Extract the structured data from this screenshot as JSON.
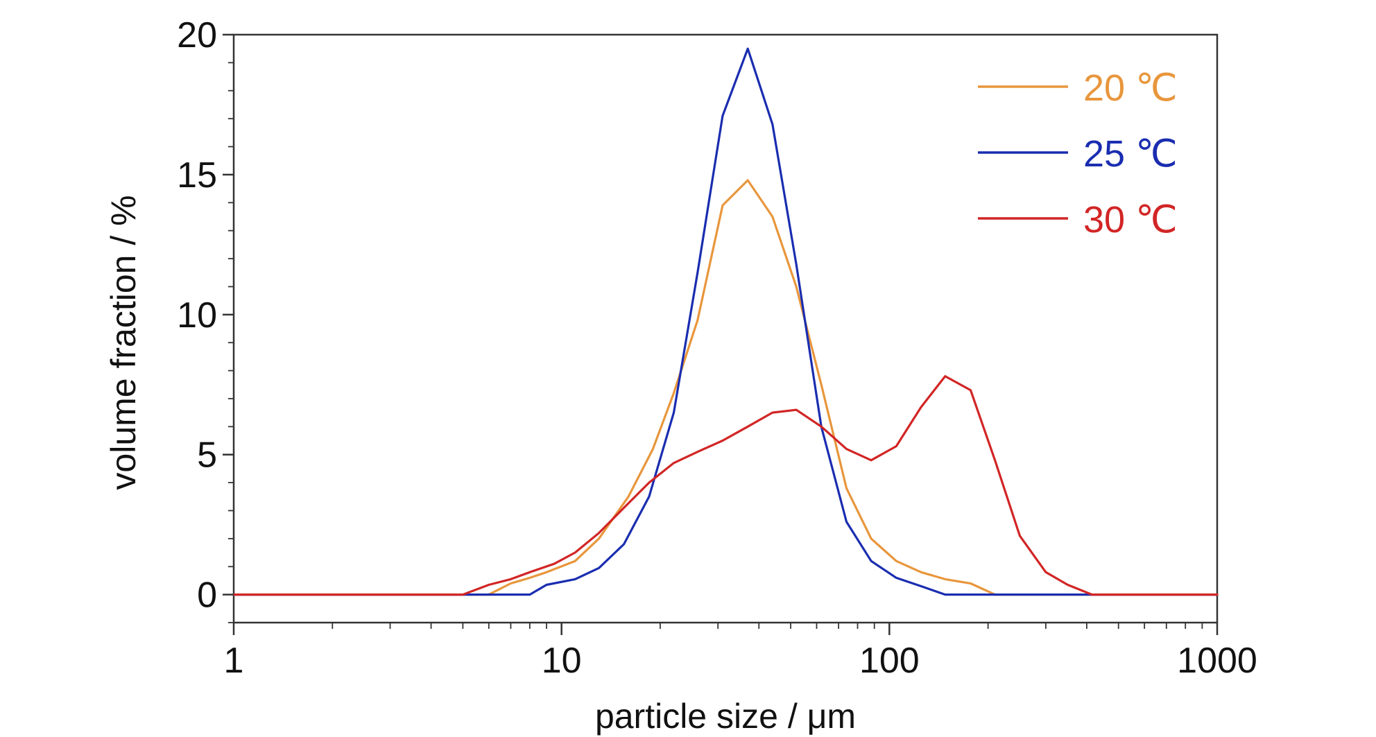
{
  "chart_data": {
    "type": "line",
    "title": "",
    "xlabel": "particle size / μm",
    "ylabel": "volume fraction / %",
    "xscale": "log",
    "xlim": [
      1,
      1000
    ],
    "ylim": [
      -1,
      20
    ],
    "x_ticks": [
      1,
      10,
      100,
      1000
    ],
    "x_tick_labels": [
      "1",
      "10",
      "100",
      "1000"
    ],
    "y_ticks": [
      0,
      5,
      10,
      15,
      20
    ],
    "y_tick_labels": [
      "0",
      "5",
      "10",
      "15",
      "20"
    ],
    "grid": false,
    "legend_position": "top-right",
    "series": [
      {
        "name": "20 ℃",
        "color": "#E8963C",
        "points": [
          [
            1,
            0
          ],
          [
            6,
            0
          ],
          [
            7,
            0.4
          ],
          [
            8,
            0.6
          ],
          [
            9,
            0.8
          ],
          [
            11,
            1.2
          ],
          [
            13,
            2.0
          ],
          [
            16,
            3.5
          ],
          [
            19,
            5.2
          ],
          [
            22,
            7.2
          ],
          [
            26,
            9.8
          ],
          [
            31,
            13.9
          ],
          [
            37,
            14.8
          ],
          [
            44,
            13.5
          ],
          [
            52,
            11.0
          ],
          [
            62,
            7.5
          ],
          [
            74,
            3.8
          ],
          [
            88,
            2.0
          ],
          [
            105,
            1.2
          ],
          [
            125,
            0.8
          ],
          [
            148,
            0.55
          ],
          [
            177,
            0.4
          ],
          [
            210,
            0
          ],
          [
            1000,
            0
          ]
        ]
      },
      {
        "name": "25 ℃",
        "color": "#1A2DB0",
        "points": [
          [
            1,
            0
          ],
          [
            5,
            0
          ],
          [
            8,
            0
          ],
          [
            9,
            0.35
          ],
          [
            11,
            0.55
          ],
          [
            13,
            0.95
          ],
          [
            15.5,
            1.8
          ],
          [
            18.5,
            3.5
          ],
          [
            22,
            6.5
          ],
          [
            26,
            11.5
          ],
          [
            31,
            17.1
          ],
          [
            37,
            19.5
          ],
          [
            44,
            16.8
          ],
          [
            52,
            11.8
          ],
          [
            62,
            6.0
          ],
          [
            74,
            2.6
          ],
          [
            88,
            1.2
          ],
          [
            105,
            0.6
          ],
          [
            125,
            0.3
          ],
          [
            148,
            0
          ],
          [
            1000,
            0
          ]
        ]
      },
      {
        "name": "30 ℃",
        "color": "#D22525",
        "points": [
          [
            1,
            0
          ],
          [
            5,
            0
          ],
          [
            6,
            0.35
          ],
          [
            7,
            0.55
          ],
          [
            8,
            0.8
          ],
          [
            9.5,
            1.1
          ],
          [
            11,
            1.5
          ],
          [
            13,
            2.2
          ],
          [
            15.5,
            3.1
          ],
          [
            18.5,
            4.0
          ],
          [
            22,
            4.7
          ],
          [
            26,
            5.1
          ],
          [
            31,
            5.5
          ],
          [
            37,
            6.0
          ],
          [
            44,
            6.5
          ],
          [
            52,
            6.6
          ],
          [
            62,
            6.0
          ],
          [
            74,
            5.2
          ],
          [
            88,
            4.8
          ],
          [
            105,
            5.3
          ],
          [
            125,
            6.7
          ],
          [
            148,
            7.8
          ],
          [
            177,
            7.3
          ],
          [
            210,
            4.8
          ],
          [
            250,
            2.1
          ],
          [
            300,
            0.8
          ],
          [
            350,
            0.35
          ],
          [
            415,
            0
          ],
          [
            1000,
            0
          ]
        ]
      }
    ]
  }
}
